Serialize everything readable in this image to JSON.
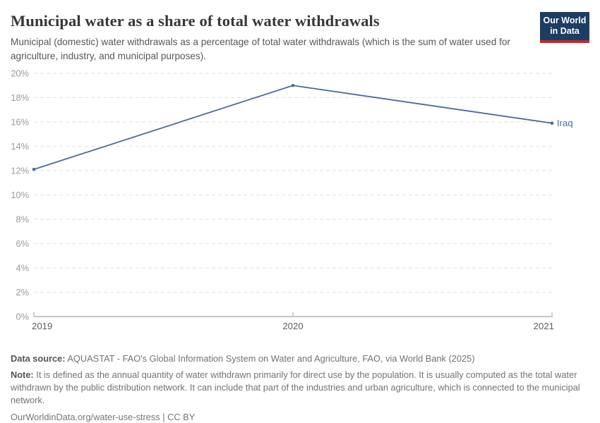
{
  "header": {
    "title": "Municipal water as a share of total water withdrawals",
    "subtitle": "Municipal (domestic) water withdrawals as a percentage of total water withdrawals (which is the sum of water used for agriculture, industry, and municipal purposes).",
    "logo": {
      "line1": "Our World",
      "line2": "in Data",
      "bg_color": "#1d3d63",
      "bar_color": "#cd2624"
    }
  },
  "chart_data": {
    "type": "line",
    "title": "Municipal water as a share of total water withdrawals",
    "x": [
      "2019",
      "2020",
      "2021"
    ],
    "series": [
      {
        "name": "Iraq",
        "color": "#4c6a9c",
        "values": [
          12.1,
          19.0,
          15.9
        ]
      }
    ],
    "ylim": [
      0,
      20
    ],
    "ytick_step": 2,
    "ytick_suffix": "%",
    "xlabel": "",
    "ylabel": "",
    "grid": "horizontal-dashed",
    "legend_position": "line-end-label",
    "colors": {
      "grid": "#e2e2e2",
      "axis": "#b3b3b3",
      "ytick_label": "#9a9a9a",
      "xtick_label": "#5e5e5e"
    }
  },
  "footer": {
    "data_source_label": "Data source:",
    "data_source_text": "AQUASTAT - FAO's Global Information System on Water and Agriculture, FAO, via World Bank (2025)",
    "note_label": "Note:",
    "note_text": "It is defined as the annual quantity of water withdrawn primarily for direct use by the population. It is usually computed as the total water withdrawn by the public distribution network. It can include that part of the industries and urban agriculture, which is connected to the municipal network.",
    "cc_line": "OurWorldinData.org/water-use-stress | CC BY"
  }
}
